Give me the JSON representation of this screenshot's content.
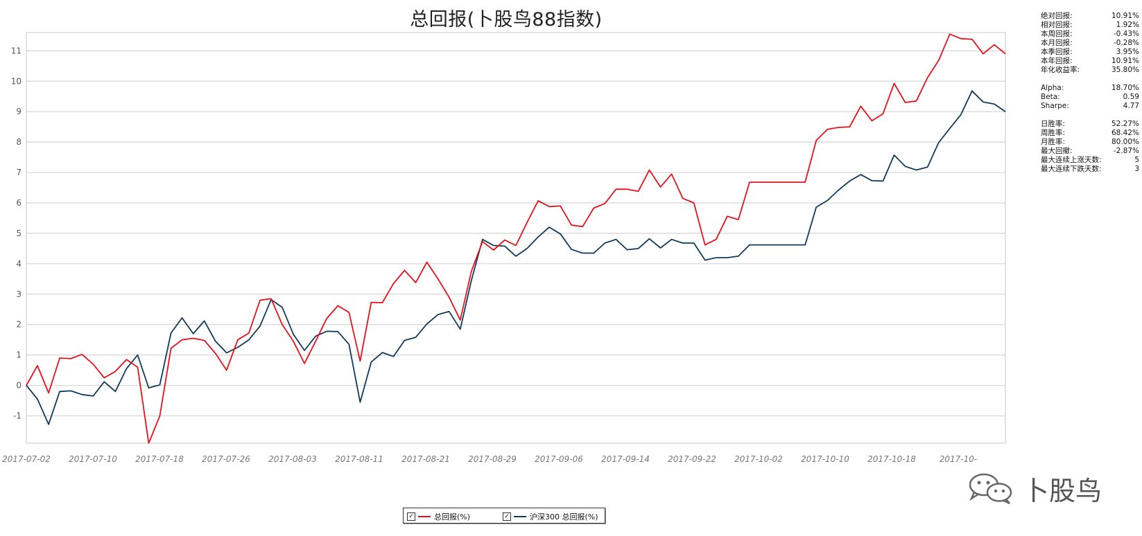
{
  "chart_data": {
    "type": "line",
    "title": "总回报(卜股鸟88指数)",
    "ylim": [
      -1.9,
      11.6
    ],
    "yticks": [
      -1,
      0,
      1,
      2,
      3,
      4,
      5,
      6,
      7,
      8,
      9,
      10,
      11
    ],
    "xticklabels": [
      "2017-07-02",
      "2017-07-10",
      "2017-07-18",
      "2017-07-26",
      "2017-08-03",
      "2017-08-11",
      "2017-08-21",
      "2017-08-29",
      "2017-09-06",
      "2017-09-14",
      "2017-09-22",
      "2017-10-02",
      "2017-10-10",
      "2017-10-18",
      "2017-10-"
    ],
    "grid": true,
    "legend": "bottom-center",
    "series": [
      {
        "name": "总回报(%)",
        "color": "#e8101a",
        "values": [
          0.0,
          0.65,
          -0.25,
          0.9,
          0.88,
          1.02,
          0.7,
          0.25,
          0.46,
          0.85,
          0.6,
          -1.9,
          -1.0,
          1.22,
          1.5,
          1.55,
          1.48,
          1.05,
          0.5,
          1.5,
          1.72,
          2.8,
          2.85,
          2.0,
          1.45,
          0.72,
          1.45,
          2.2,
          2.62,
          2.4,
          0.8,
          2.73,
          2.72,
          3.35,
          3.78,
          3.38,
          4.05,
          3.5,
          2.9,
          2.15,
          3.75,
          4.73,
          4.45,
          4.78,
          4.6,
          5.35,
          6.07,
          5.88,
          5.9,
          5.27,
          5.22,
          5.83,
          5.98,
          6.45,
          6.45,
          6.38,
          7.08,
          6.52,
          6.95,
          6.15,
          6.0,
          4.62,
          4.8,
          5.56,
          5.45,
          6.68,
          6.68,
          6.68,
          6.68,
          6.68,
          6.68,
          8.05,
          8.42,
          8.48,
          8.5,
          9.18,
          8.7,
          8.93,
          9.93,
          9.3,
          9.35,
          10.12,
          10.68,
          11.55,
          11.4,
          11.38,
          10.9,
          11.2,
          10.9
        ],
        "width": 1.8
      },
      {
        "name": "沪深300 总回报(%)",
        "color": "#0e3a5c",
        "values": [
          0.0,
          -0.45,
          -1.28,
          -0.2,
          -0.18,
          -0.3,
          -0.35,
          0.12,
          -0.2,
          0.55,
          1.0,
          -0.08,
          0.02,
          1.72,
          2.22,
          1.7,
          2.12,
          1.45,
          1.07,
          1.25,
          1.5,
          1.95,
          2.82,
          2.57,
          1.68,
          1.15,
          1.62,
          1.78,
          1.77,
          1.35,
          -0.55,
          0.77,
          1.08,
          0.95,
          1.48,
          1.58,
          2.02,
          2.33,
          2.43,
          1.85,
          3.45,
          4.8,
          4.6,
          4.58,
          4.25,
          4.5,
          4.88,
          5.2,
          4.98,
          4.47,
          4.35,
          4.35,
          4.68,
          4.8,
          4.46,
          4.5,
          4.82,
          4.52,
          4.8,
          4.68,
          4.68,
          4.12,
          4.2,
          4.2,
          4.25,
          4.62,
          4.62,
          4.62,
          4.62,
          4.62,
          4.62,
          5.86,
          6.08,
          6.42,
          6.72,
          6.93,
          6.73,
          6.72,
          7.57,
          7.2,
          7.08,
          7.18,
          7.98,
          8.45,
          8.9,
          9.68,
          9.32,
          9.25,
          9.0
        ],
        "width": 1.8
      }
    ]
  },
  "stats": {
    "groups": [
      [
        {
          "label": "绝对回报:",
          "value": "10.91%"
        },
        {
          "label": "相对回报:",
          "value": "1.92%"
        },
        {
          "label": "本周回报:",
          "value": "-0.43%"
        },
        {
          "label": "本月回报:",
          "value": "-0.28%"
        },
        {
          "label": "本季回报:",
          "value": "3.95%"
        },
        {
          "label": "本年回报:",
          "value": "10.91%"
        },
        {
          "label": "年化收益率:",
          "value": "35.80%"
        }
      ],
      [
        {
          "label": "Alpha:",
          "value": "18.70%"
        },
        {
          "label": "Beta:",
          "value": "0.59"
        },
        {
          "label": "Sharpe:",
          "value": "4.77"
        }
      ],
      [
        {
          "label": "日胜率:",
          "value": "52.27%"
        },
        {
          "label": "周胜率:",
          "value": "68.42%"
        },
        {
          "label": "月胜率:",
          "value": "80.00%"
        },
        {
          "label": "最大回撤:",
          "value": "-2.87%"
        },
        {
          "label": "最大连续上涨天数:",
          "value": "5"
        },
        {
          "label": "最大连续下跌天数:",
          "value": "3"
        }
      ]
    ]
  },
  "legend": {
    "items": [
      {
        "label": "总回报(%)",
        "checked": "✓",
        "color": "#e8101a"
      },
      {
        "label": "沪深300 总回报(%)",
        "checked": "✓",
        "color": "#0e3a5c"
      }
    ]
  },
  "watermark": {
    "text": "卜股鸟",
    "icon": "wechat-icon"
  }
}
